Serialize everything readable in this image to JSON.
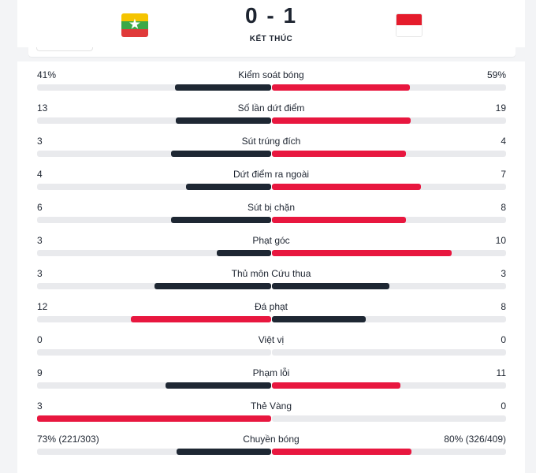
{
  "header": {
    "score": "0 - 1",
    "status": "KẾT THÚC",
    "home_flag_icon": "myanmar-flag-icon",
    "away_flag_icon": "indonesia-flag-icon"
  },
  "colors": {
    "dark": "#1e2733",
    "red": "#e8173f",
    "track": "#e9eaed"
  },
  "stats": [
    {
      "label": "Kiểm soát bóng",
      "home": "41%",
      "away": "59%",
      "home_val": 41,
      "away_val": 59,
      "home_max": 100,
      "away_max": 100,
      "home_color": "dark",
      "away_color": "red"
    },
    {
      "label": "Số lần dứt điểm",
      "home": "13",
      "away": "19",
      "home_val": 13,
      "away_val": 19,
      "home_max": 32,
      "away_max": 32,
      "home_color": "dark",
      "away_color": "red"
    },
    {
      "label": "Sút trúng đích",
      "home": "3",
      "away": "4",
      "home_val": 3,
      "away_val": 4,
      "home_max": 7,
      "away_max": 7,
      "home_color": "dark",
      "away_color": "red"
    },
    {
      "label": "Dứt điểm ra ngoài",
      "home": "4",
      "away": "7",
      "home_val": 4,
      "away_val": 7,
      "home_max": 11,
      "away_max": 11,
      "home_color": "dark",
      "away_color": "red"
    },
    {
      "label": "Sút bị chặn",
      "home": "6",
      "away": "8",
      "home_val": 6,
      "away_val": 8,
      "home_max": 14,
      "away_max": 14,
      "home_color": "dark",
      "away_color": "red"
    },
    {
      "label": "Phạt góc",
      "home": "3",
      "away": "10",
      "home_val": 3,
      "away_val": 10,
      "home_max": 13,
      "away_max": 13,
      "home_color": "dark",
      "away_color": "red"
    },
    {
      "label": "Thủ môn Cứu thua",
      "home": "3",
      "away": "3",
      "home_val": 3,
      "away_val": 3,
      "home_max": 6,
      "away_max": 6,
      "home_color": "dark",
      "away_color": "dark"
    },
    {
      "label": "Đá phạt",
      "home": "12",
      "away": "8",
      "home_val": 12,
      "away_val": 8,
      "home_max": 20,
      "away_max": 20,
      "home_color": "red",
      "away_color": "dark"
    },
    {
      "label": "Việt vị",
      "home": "0",
      "away": "0",
      "home_val": 0,
      "away_val": 0,
      "home_max": 1,
      "away_max": 1,
      "home_color": "dark",
      "away_color": "red"
    },
    {
      "label": "Phạm lỗi",
      "home": "9",
      "away": "11",
      "home_val": 9,
      "away_val": 11,
      "home_max": 20,
      "away_max": 20,
      "home_color": "dark",
      "away_color": "red"
    },
    {
      "label": "Thẻ Vàng",
      "home": "3",
      "away": "0",
      "home_val": 3,
      "away_val": 0,
      "home_max": 3,
      "away_max": 3,
      "home_color": "red",
      "away_color": "red"
    },
    {
      "label": "Chuyền bóng",
      "home": "73% (221/303)",
      "away": "80% (326/409)",
      "home_val": 221,
      "away_val": 326,
      "home_max": 547,
      "away_max": 547,
      "home_color": "dark",
      "away_color": "red"
    }
  ]
}
